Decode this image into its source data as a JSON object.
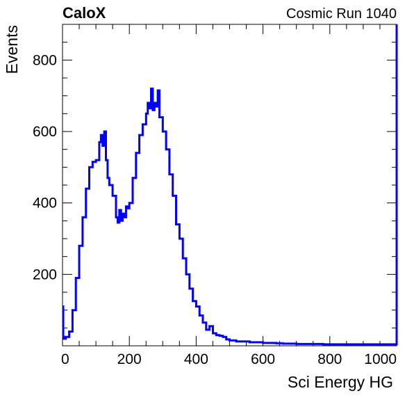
{
  "chart_data": {
    "type": "line",
    "title": "CaloX",
    "subtitle": "Cosmic Run 1040",
    "xlabel": "Sci Energy HG",
    "ylabel": "Events",
    "xlim": [
      0,
      1000
    ],
    "ylim": [
      0,
      900
    ],
    "xticks": [
      0,
      200,
      400,
      600,
      800,
      1000
    ],
    "xtick_labels": [
      "0",
      "200",
      "400",
      "600",
      "800",
      "1000"
    ],
    "yticks": [
      200,
      400,
      600,
      800
    ],
    "ytick_labels": [
      "200",
      "400",
      "600",
      "800"
    ],
    "grid": false,
    "legend": "none",
    "series": [
      {
        "color": "#0000ff",
        "x": [
          0,
          2,
          4,
          10,
          20,
          30,
          40,
          50,
          60,
          70,
          80,
          90,
          100,
          110,
          115,
          120,
          125,
          130,
          135,
          140,
          150,
          160,
          165,
          170,
          175,
          180,
          185,
          190,
          195,
          200,
          210,
          220,
          230,
          240,
          250,
          255,
          260,
          265,
          270,
          275,
          280,
          285,
          290,
          300,
          310,
          320,
          330,
          340,
          350,
          360,
          370,
          380,
          390,
          400,
          410,
          420,
          430,
          440,
          450,
          460,
          470,
          480,
          490,
          500,
          520,
          540,
          560,
          580,
          600,
          620,
          640,
          660,
          680,
          700,
          720,
          740,
          760,
          780,
          800,
          820,
          840,
          860,
          880,
          900,
          920,
          940,
          960,
          980,
          998,
          1000
        ],
        "y": [
          110,
          25,
          20,
          25,
          40,
          100,
          190,
          280,
          360,
          440,
          500,
          515,
          520,
          570,
          590,
          560,
          600,
          520,
          470,
          450,
          420,
          360,
          345,
          380,
          350,
          370,
          360,
          390,
          385,
          400,
          470,
          540,
          590,
          620,
          650,
          680,
          665,
          720,
          660,
          680,
          670,
          715,
          640,
          600,
          550,
          480,
          420,
          340,
          300,
          245,
          200,
          160,
          125,
          110,
          85,
          65,
          45,
          55,
          35,
          30,
          28,
          25,
          18,
          15,
          12,
          12,
          10,
          10,
          8,
          8,
          7,
          6,
          6,
          5,
          5,
          5,
          5,
          4,
          4,
          4,
          4,
          4,
          4,
          4,
          4,
          4,
          4,
          4,
          4,
          900
        ]
      }
    ]
  }
}
